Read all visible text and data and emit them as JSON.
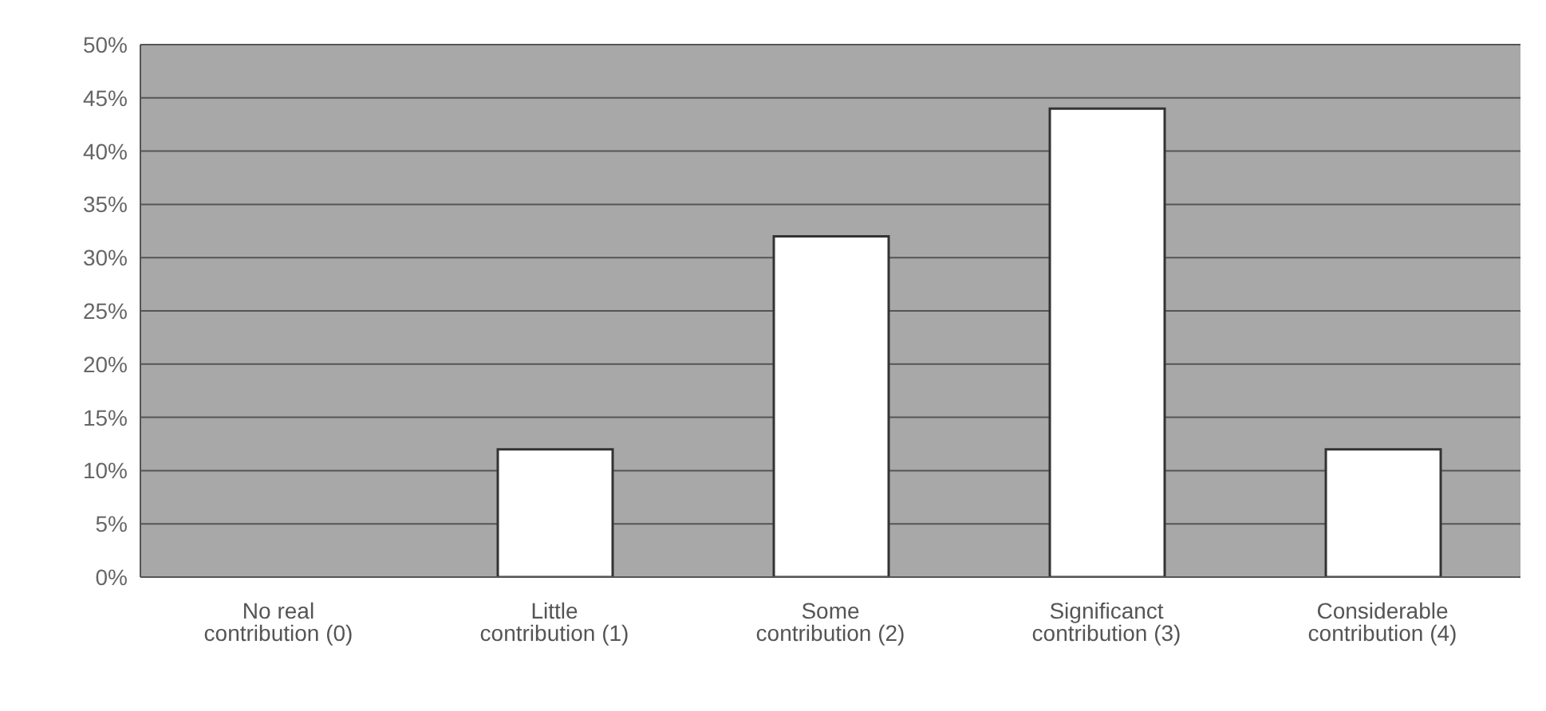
{
  "chart_data": {
    "type": "bar",
    "categories": [
      "No real contribution (0)",
      "Little contribution (1)",
      "Some contribution (2)",
      "Significanct contribution (3)",
      "Considerable contribution (4)"
    ],
    "values": [
      0,
      12,
      32,
      44,
      12
    ],
    "color": "#ffffff",
    "ylim": [
      0,
      50
    ],
    "yticks": [
      {
        "value": 0,
        "label": "0%"
      },
      {
        "value": 5,
        "label": "5%"
      },
      {
        "value": 10,
        "label": "10%"
      },
      {
        "value": 15,
        "label": "15%"
      },
      {
        "value": 20,
        "label": "20%"
      },
      {
        "value": 25,
        "label": "25%"
      },
      {
        "value": 30,
        "label": "30%"
      },
      {
        "value": 35,
        "label": "35%"
      },
      {
        "value": 40,
        "label": "40%"
      },
      {
        "value": 45,
        "label": "45%"
      },
      {
        "value": 50,
        "label": "50%"
      }
    ],
    "grid": "y",
    "legend": false
  }
}
